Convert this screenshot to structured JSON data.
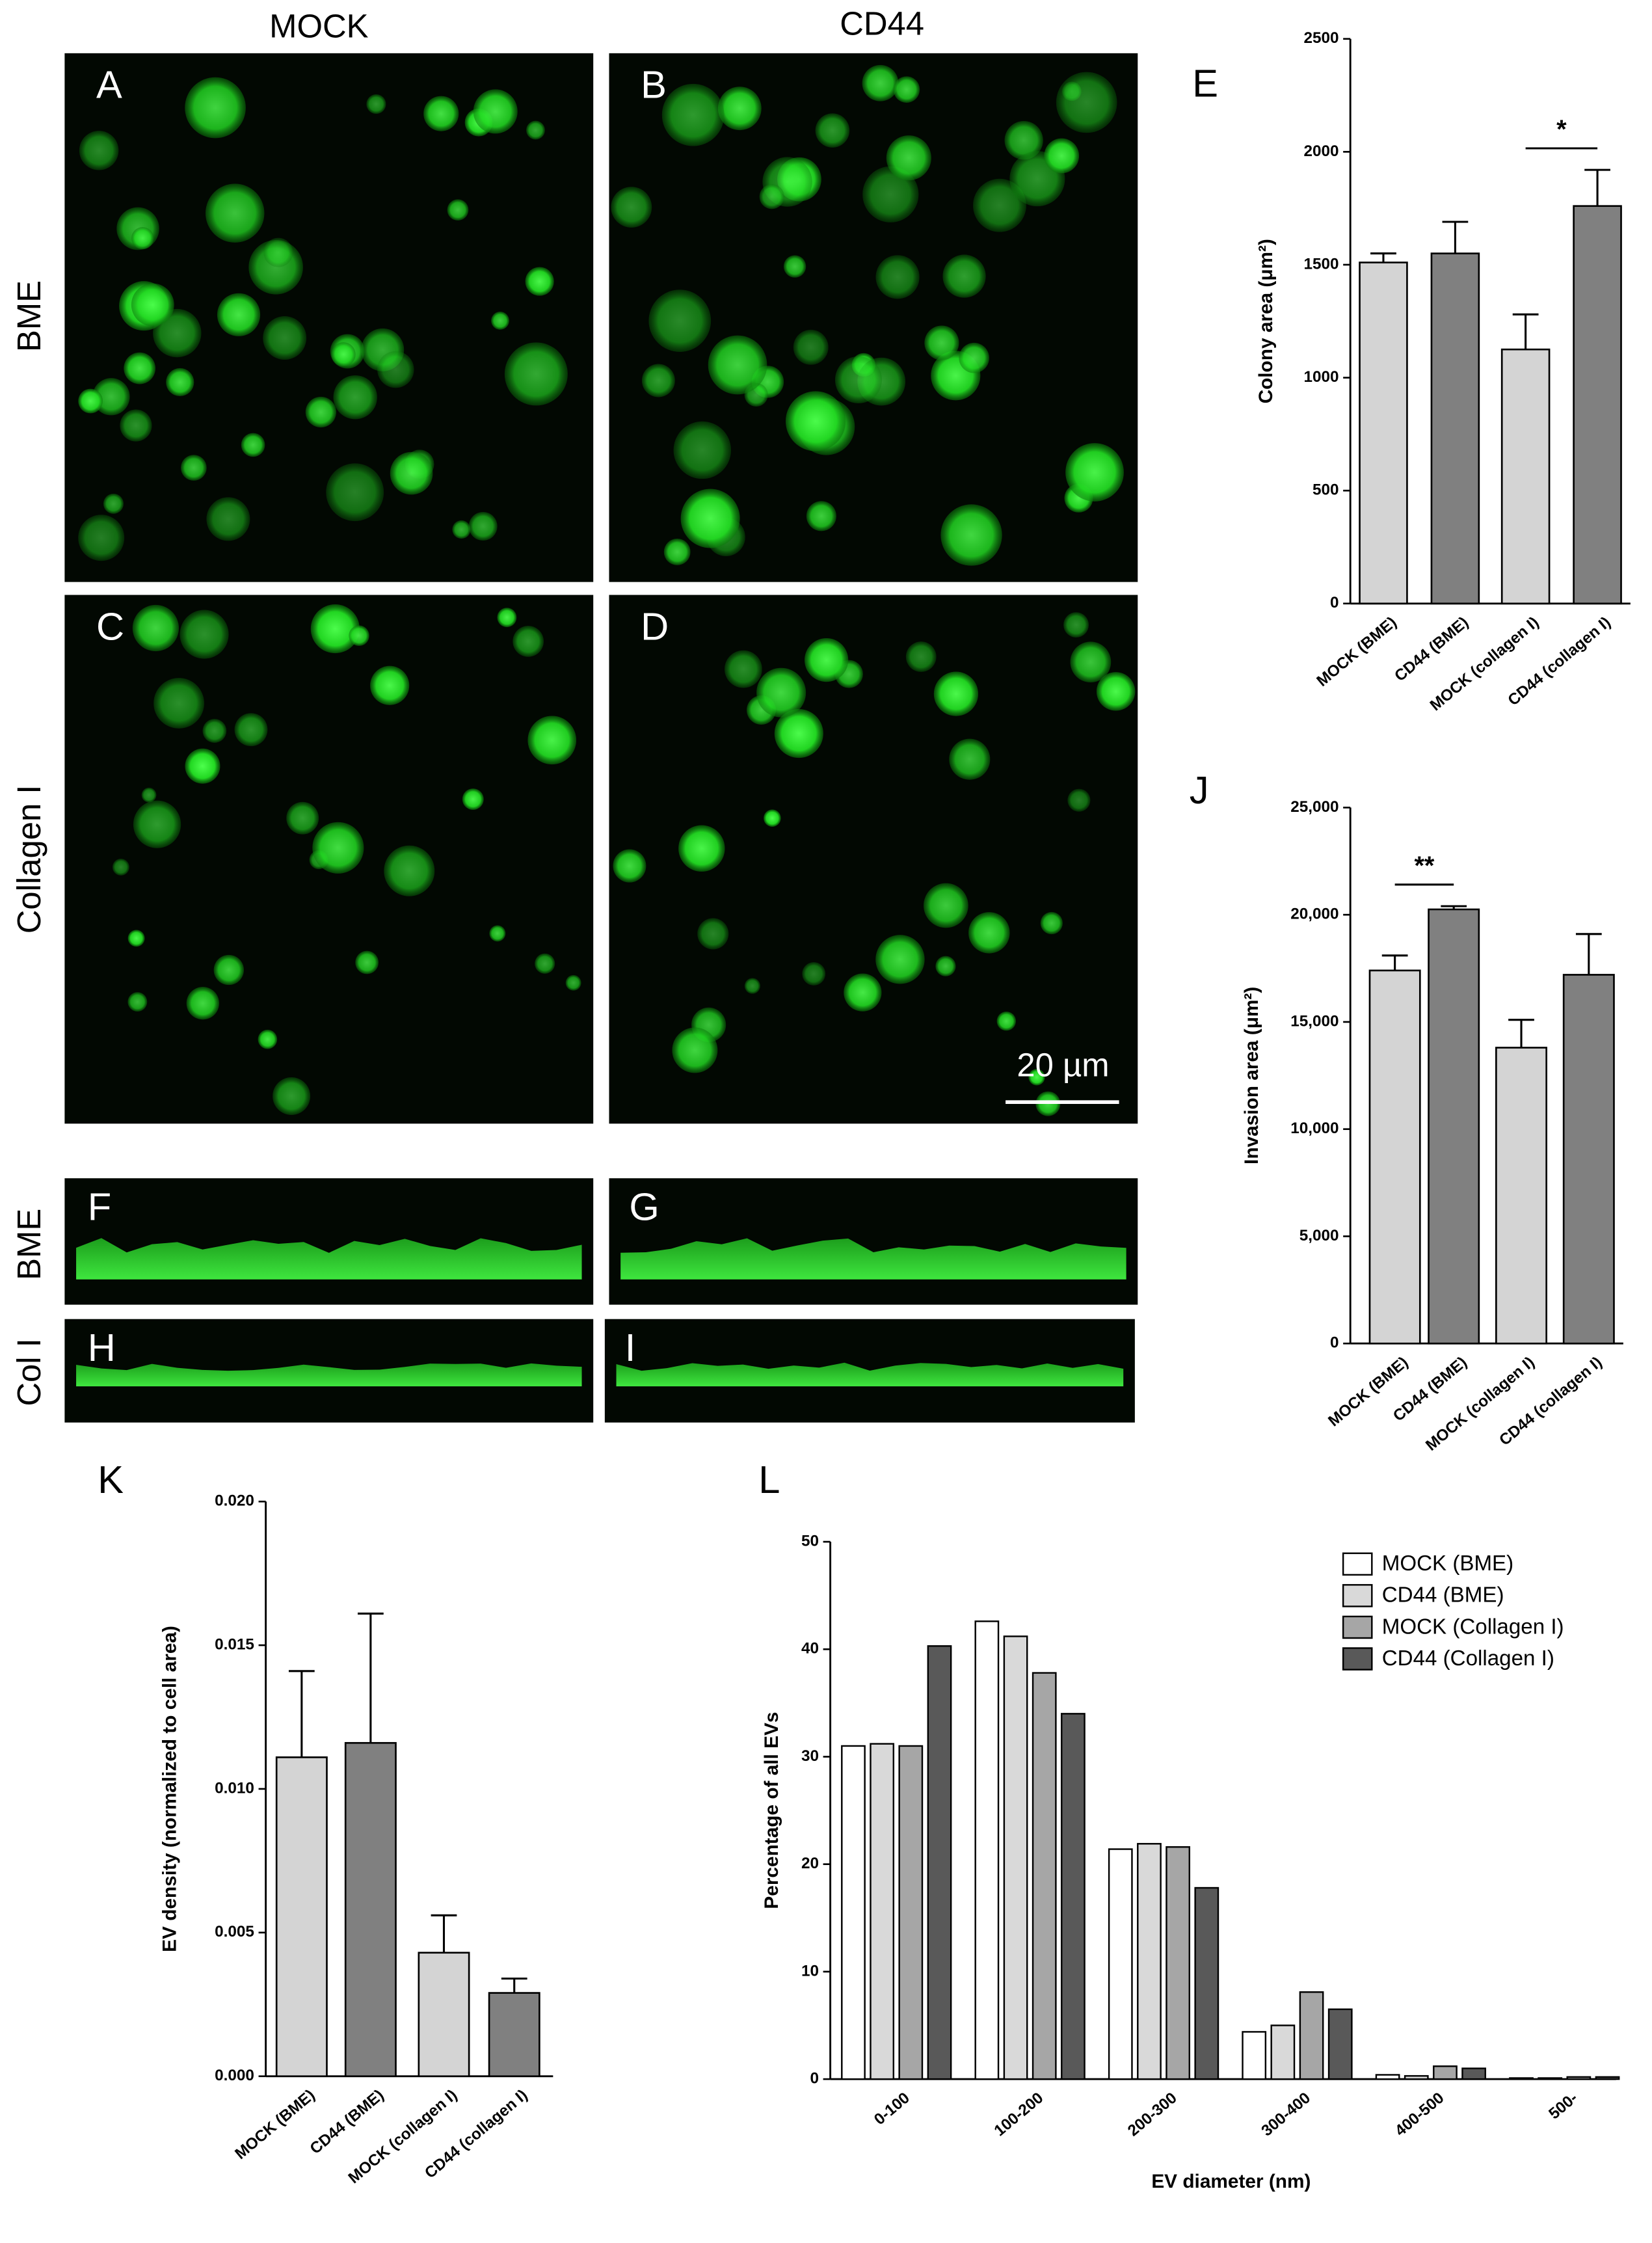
{
  "figure": {
    "column_labels": [
      "MOCK",
      "CD44"
    ],
    "row_labels": [
      "BME",
      "Collagen I",
      "BME",
      "Col I"
    ],
    "panel_labels": [
      "A",
      "B",
      "C",
      "D",
      "F",
      "G",
      "H",
      "I"
    ],
    "scale_bar": "20 µm"
  },
  "chart_data": [
    {
      "type": "bar",
      "panel_label": "E",
      "ylabel": "Colony area (μm²)",
      "categories": [
        "MOCK (BME)",
        "CD44 (BME)",
        "MOCK (collagen I)",
        "CD44 (collagen I)"
      ],
      "values": [
        1510,
        1550,
        1125,
        1760
      ],
      "errors": [
        40,
        140,
        155,
        160
      ],
      "colors": [
        "#d4d4d4",
        "#808080",
        "#d4d4d4",
        "#808080"
      ],
      "ylim": [
        0,
        2500
      ],
      "yticks": [
        0,
        500,
        1000,
        1500,
        2000,
        2500
      ],
      "significance": {
        "label": "*",
        "pair": [
          "MOCK (collagen I)",
          "CD44 (collagen I)"
        ]
      }
    },
    {
      "type": "bar",
      "panel_label": "J",
      "ylabel": "Invasion area (μm²)",
      "categories": [
        "MOCK (BME)",
        "CD44 (BME)",
        "MOCK (collagen I)",
        "CD44 (collagen I)"
      ],
      "values": [
        17400,
        20250,
        13800,
        17200
      ],
      "errors": [
        700,
        150,
        1300,
        1900
      ],
      "colors": [
        "#d4d4d4",
        "#808080",
        "#d4d4d4",
        "#808080"
      ],
      "ylim": [
        0,
        25000
      ],
      "yticks": [
        0,
        {
          "value": 5000,
          "label": "5,000"
        },
        {
          "value": 10000,
          "label": "10,000"
        },
        {
          "value": 15000,
          "label": "15,000"
        },
        {
          "value": 20000,
          "label": "20,000"
        },
        {
          "value": 25000,
          "label": "25,000"
        }
      ],
      "significance": {
        "label": "**",
        "pair": [
          "MOCK (BME)",
          "CD44 (BME)"
        ]
      }
    },
    {
      "type": "bar",
      "panel_label": "K",
      "ylabel": "EV density (normalized to cell area)",
      "categories": [
        "MOCK (BME)",
        "CD44 (BME)",
        "MOCK (collagen I)",
        "CD44 (collagen I)"
      ],
      "values": [
        0.0111,
        0.0116,
        0.0043,
        0.0029
      ],
      "errors": [
        0.003,
        0.0045,
        0.0013,
        0.0005
      ],
      "colors": [
        "#d4d4d4",
        "#808080",
        "#d4d4d4",
        "#808080"
      ],
      "ylim": [
        0,
        0.02
      ],
      "yticks": [
        {
          "value": 0,
          "label": "0.000"
        },
        {
          "value": 0.005,
          "label": "0.005"
        },
        {
          "value": 0.01,
          "label": "0.010"
        },
        {
          "value": 0.015,
          "label": "0.015"
        },
        {
          "value": 0.02,
          "label": "0.020"
        }
      ]
    },
    {
      "type": "bar",
      "panel_label": "L",
      "ylabel": "Percentage of all EVs",
      "xlabel": "EV diameter (nm)",
      "categories": [
        "0-100",
        "100-200",
        "200-300",
        "300-400",
        "400-500",
        "500-"
      ],
      "series": [
        {
          "name": "MOCK (BME)",
          "color": "#ffffff",
          "values": [
            31,
            42.6,
            21.4,
            4.4,
            0.4,
            0.1
          ]
        },
        {
          "name": "CD44 (BME)",
          "color": "#d9d9d9",
          "values": [
            31.2,
            41.2,
            21.9,
            5.0,
            0.3,
            0.1
          ]
        },
        {
          "name": "MOCK (Collagen I)",
          "color": "#a6a6a6",
          "values": [
            31,
            37.8,
            21.6,
            8.1,
            1.2,
            0.2
          ]
        },
        {
          "name": "CD44 (Collagen I)",
          "color": "#595959",
          "values": [
            40.3,
            34,
            17.8,
            6.5,
            1.0,
            0.2
          ]
        }
      ],
      "ylim": [
        0,
        50
      ],
      "yticks": [
        0,
        10,
        20,
        30,
        40,
        50
      ],
      "legend": "top-right"
    }
  ]
}
